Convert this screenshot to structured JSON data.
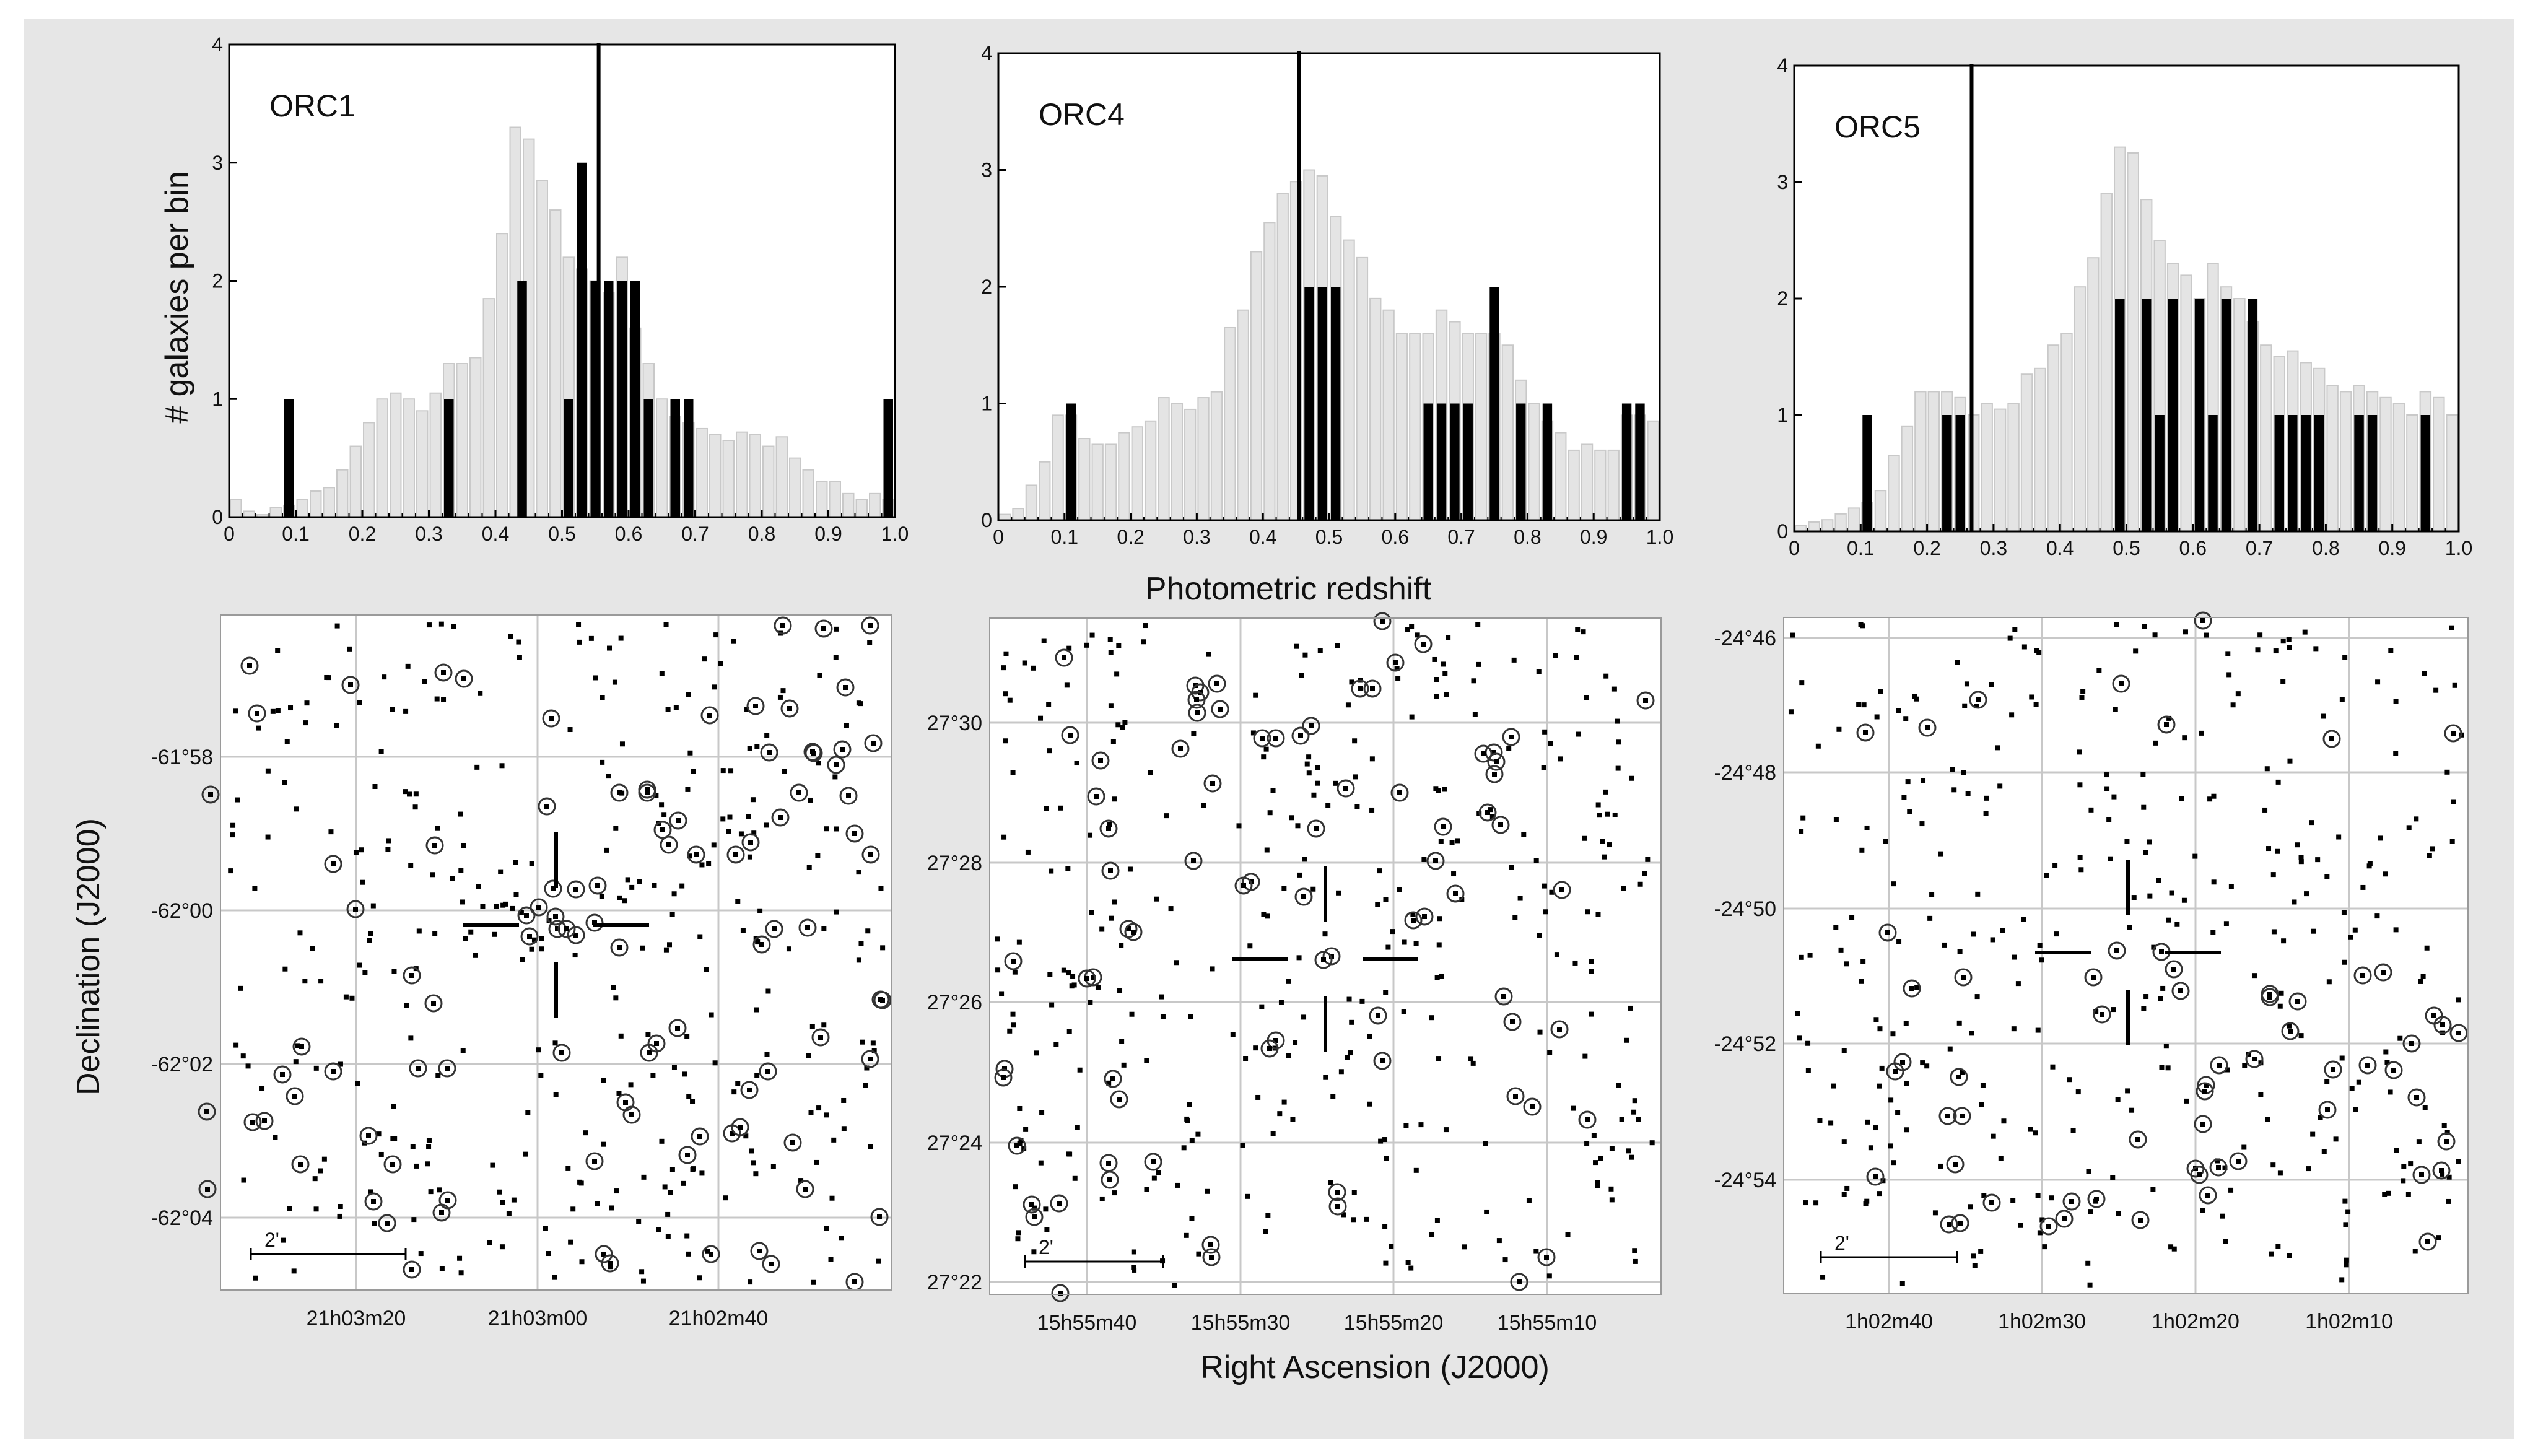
{
  "figure": {
    "shared_xlabel_hist": "Photometric redshift",
    "shared_ylabel_hist": "# galaxies per bin",
    "shared_xlabel_map": "Right Ascension (J2000)",
    "shared_ylabel_map": "Declination (J2000)",
    "colors": {
      "background": "#e6e6e6",
      "panel": "#ffffff",
      "bar_dark": "#000000",
      "bar_light": "#e4e4e4",
      "bar_light_edge": "#c9c9c9",
      "grid": "#c8c8c8",
      "marker": "#000000"
    }
  },
  "chart_data": [
    {
      "type": "bar",
      "panel_label": "ORC1",
      "xlim": [
        0,
        1.0
      ],
      "ylim": [
        0,
        4
      ],
      "xticks": [
        "0",
        "0.1",
        "0.2",
        "0.3",
        "0.4",
        "0.5",
        "0.6",
        "0.7",
        "0.8",
        "0.9",
        "1.0"
      ],
      "yticks": [
        "0",
        "1",
        "2",
        "3",
        "4"
      ],
      "bin_width": 0.02,
      "marker_line_x": 0.555,
      "background_bins": {
        "x": [
          0.01,
          0.03,
          0.05,
          0.07,
          0.09,
          0.11,
          0.13,
          0.15,
          0.17,
          0.19,
          0.21,
          0.23,
          0.25,
          0.27,
          0.29,
          0.31,
          0.33,
          0.35,
          0.37,
          0.39,
          0.41,
          0.43,
          0.45,
          0.47,
          0.49,
          0.51,
          0.53,
          0.55,
          0.57,
          0.59,
          0.61,
          0.63,
          0.65,
          0.67,
          0.69,
          0.71,
          0.73,
          0.75,
          0.77,
          0.79,
          0.81,
          0.83,
          0.85,
          0.87,
          0.89,
          0.91,
          0.93,
          0.95,
          0.97,
          0.99
        ],
        "values": [
          0.15,
          0.05,
          0.02,
          0.08,
          0.1,
          0.15,
          0.22,
          0.25,
          0.4,
          0.6,
          0.8,
          1.0,
          1.05,
          1.0,
          0.9,
          1.05,
          1.3,
          1.3,
          1.35,
          1.85,
          2.4,
          3.3,
          3.2,
          2.85,
          2.6,
          2.2,
          2.1,
          2.0,
          1.9,
          2.2,
          1.6,
          1.3,
          1.0,
          0.85,
          0.8,
          0.75,
          0.7,
          0.65,
          0.72,
          0.7,
          0.6,
          0.68,
          0.5,
          0.4,
          0.3,
          0.3,
          0.2,
          0.15,
          0.2,
          0.15
        ]
      },
      "series": [
        {
          "name": "",
          "x": [
            0.09,
            0.33,
            0.44,
            0.51,
            0.53,
            0.55,
            0.57,
            0.59,
            0.61,
            0.63,
            0.67,
            0.69,
            0.99
          ],
          "values": [
            1,
            1,
            2,
            1,
            3,
            2,
            2,
            2,
            2,
            1,
            1,
            1,
            1
          ]
        }
      ]
    },
    {
      "type": "bar",
      "panel_label": "ORC4",
      "xlim": [
        0,
        1.0
      ],
      "ylim": [
        0,
        4
      ],
      "xticks": [
        "0",
        "0.1",
        "0.2",
        "0.3",
        "0.4",
        "0.5",
        "0.6",
        "0.7",
        "0.8",
        "0.9",
        "1.0"
      ],
      "yticks": [
        "0",
        "1",
        "2",
        "3",
        "4"
      ],
      "bin_width": 0.02,
      "marker_line_x": 0.455,
      "background_bins": {
        "x": [
          0.01,
          0.03,
          0.05,
          0.07,
          0.09,
          0.11,
          0.13,
          0.15,
          0.17,
          0.19,
          0.21,
          0.23,
          0.25,
          0.27,
          0.29,
          0.31,
          0.33,
          0.35,
          0.37,
          0.39,
          0.41,
          0.43,
          0.45,
          0.47,
          0.49,
          0.51,
          0.53,
          0.55,
          0.57,
          0.59,
          0.61,
          0.63,
          0.65,
          0.67,
          0.69,
          0.71,
          0.73,
          0.75,
          0.77,
          0.79,
          0.81,
          0.83,
          0.85,
          0.87,
          0.89,
          0.91,
          0.93,
          0.95,
          0.97,
          0.99
        ],
        "values": [
          0.05,
          0.1,
          0.3,
          0.5,
          0.9,
          0.9,
          0.7,
          0.65,
          0.65,
          0.75,
          0.8,
          0.85,
          1.05,
          1.0,
          0.95,
          1.05,
          1.1,
          1.65,
          1.8,
          2.3,
          2.55,
          2.8,
          2.9,
          3.0,
          2.95,
          2.6,
          2.4,
          2.25,
          1.9,
          1.8,
          1.6,
          1.6,
          1.6,
          1.8,
          1.7,
          1.6,
          1.6,
          1.6,
          1.5,
          1.2,
          1.0,
          0.85,
          0.75,
          0.6,
          0.65,
          0.6,
          0.6,
          0.9,
          0.9,
          0.85
        ]
      },
      "series": [
        {
          "name": "",
          "x": [
            0.11,
            0.47,
            0.49,
            0.51,
            0.65,
            0.67,
            0.69,
            0.71,
            0.75,
            0.79,
            0.83,
            0.95,
            0.97
          ],
          "values": [
            1,
            2,
            2,
            2,
            1,
            1,
            1,
            1,
            2,
            1,
            1,
            1,
            1
          ]
        }
      ]
    },
    {
      "type": "bar",
      "panel_label": "ORC5",
      "xlim": [
        0,
        1.0
      ],
      "ylim": [
        0,
        4
      ],
      "xticks": [
        "0",
        "0.1",
        "0.2",
        "0.3",
        "0.4",
        "0.5",
        "0.6",
        "0.7",
        "0.8",
        "0.9",
        "1.0"
      ],
      "yticks": [
        "0",
        "1",
        "2",
        "3",
        "4"
      ],
      "bin_width": 0.02,
      "marker_line_x": 0.267,
      "background_bins": {
        "x": [
          0.01,
          0.03,
          0.05,
          0.07,
          0.09,
          0.11,
          0.13,
          0.15,
          0.17,
          0.19,
          0.21,
          0.23,
          0.25,
          0.27,
          0.29,
          0.31,
          0.33,
          0.35,
          0.37,
          0.39,
          0.41,
          0.43,
          0.45,
          0.47,
          0.49,
          0.51,
          0.53,
          0.55,
          0.57,
          0.59,
          0.61,
          0.63,
          0.65,
          0.67,
          0.69,
          0.71,
          0.73,
          0.75,
          0.77,
          0.79,
          0.81,
          0.83,
          0.85,
          0.87,
          0.89,
          0.91,
          0.93,
          0.95,
          0.97,
          0.99
        ],
        "values": [
          0.05,
          0.08,
          0.1,
          0.15,
          0.2,
          0.25,
          0.35,
          0.65,
          0.9,
          1.2,
          1.2,
          1.2,
          1.15,
          1.0,
          1.1,
          1.05,
          1.1,
          1.35,
          1.4,
          1.6,
          1.7,
          2.1,
          2.35,
          2.9,
          3.3,
          3.25,
          2.85,
          2.5,
          2.3,
          2.2,
          2.0,
          2.3,
          2.1,
          2.0,
          1.8,
          1.6,
          1.5,
          1.55,
          1.45,
          1.4,
          1.25,
          1.2,
          1.25,
          1.2,
          1.15,
          1.1,
          1.0,
          1.2,
          1.15,
          1.0
        ]
      },
      "series": [
        {
          "name": "",
          "x": [
            0.11,
            0.23,
            0.25,
            0.49,
            0.53,
            0.55,
            0.57,
            0.61,
            0.63,
            0.65,
            0.69,
            0.73,
            0.75,
            0.77,
            0.79,
            0.85,
            0.87,
            0.95
          ],
          "values": [
            1,
            1,
            1,
            2,
            2,
            1,
            2,
            2,
            1,
            2,
            2,
            1,
            1,
            1,
            1,
            1,
            1,
            1
          ]
        }
      ]
    }
  ],
  "maps": [
    {
      "ra_ticks": [
        "21h03m20",
        "21h03m00",
        "21h02m40"
      ],
      "dec_ticks": [
        "-61°58",
        "-62°00",
        "-62°02",
        "-62°04"
      ],
      "scale_bar_label": "2'"
    },
    {
      "ra_ticks": [
        "15h55m40",
        "15h55m30",
        "15h55m20",
        "15h55m10"
      ],
      "dec_ticks": [
        "27°30",
        "27°28",
        "27°26",
        "27°24",
        "27°22"
      ],
      "scale_bar_label": "2'"
    },
    {
      "ra_ticks": [
        "1h02m40",
        "1h02m30",
        "1h02m20",
        "1h02m10"
      ],
      "dec_ticks": [
        "-24°46",
        "-24°48",
        "-24°50",
        "-24°52",
        "-24°54"
      ],
      "scale_bar_label": "2'"
    }
  ]
}
